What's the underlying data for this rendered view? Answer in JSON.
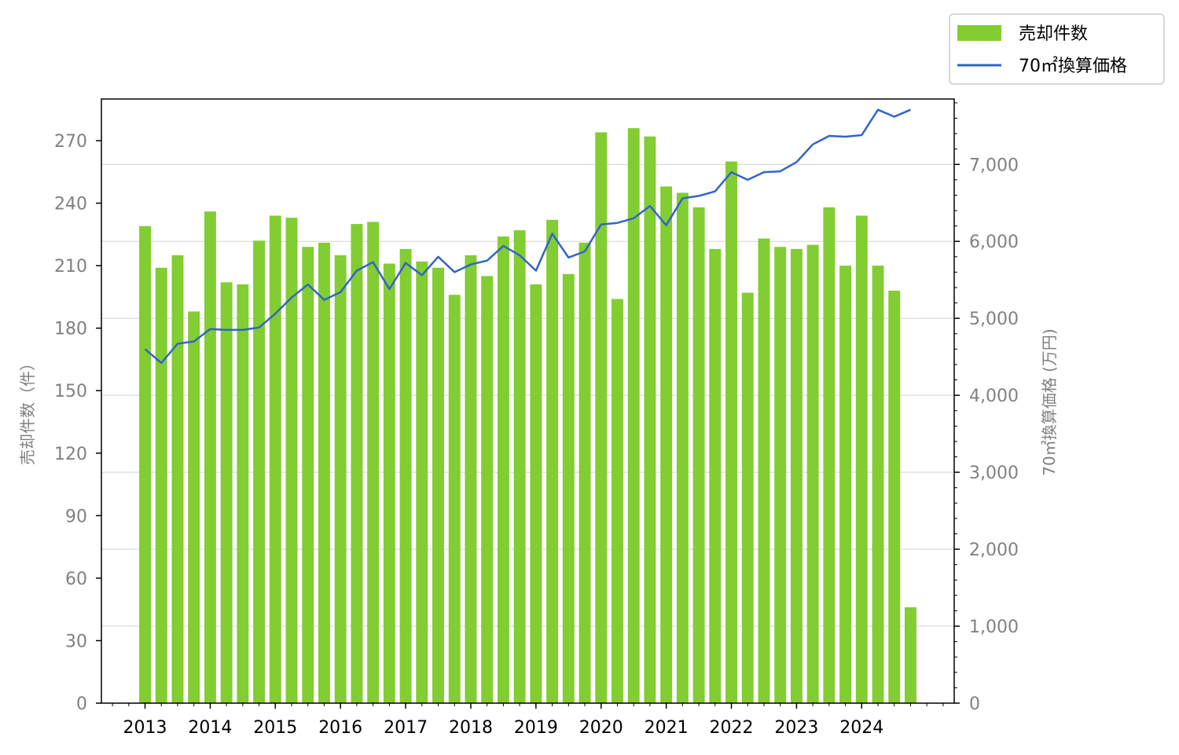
{
  "colors": {
    "bar": "#82cd32",
    "line": "#3264c8",
    "grid": "#d3d3d3",
    "tick_text": "#808080"
  },
  "legend": {
    "placement": "top-right, outside plot",
    "items": [
      {
        "label": "売却件数",
        "type": "bar"
      },
      {
        "label": "70㎡換算価格",
        "type": "line"
      }
    ]
  },
  "chart_data": {
    "type": "bar+line",
    "x": [
      2013.0,
      2013.25,
      2013.5,
      2013.75,
      2014.0,
      2014.25,
      2014.5,
      2014.75,
      2015.0,
      2015.25,
      2015.5,
      2015.75,
      2016.0,
      2016.25,
      2016.5,
      2016.75,
      2017.0,
      2017.25,
      2017.5,
      2017.75,
      2018.0,
      2018.25,
      2018.5,
      2018.75,
      2019.0,
      2019.25,
      2019.5,
      2019.75,
      2020.0,
      2020.25,
      2020.5,
      2020.75,
      2021.0,
      2021.25,
      2021.5,
      2021.75,
      2022.0,
      2022.25,
      2022.5,
      2022.75,
      2023.0,
      2023.25,
      2023.5,
      2023.75,
      2024.0,
      2024.25,
      2024.5,
      2024.75
    ],
    "x_ticks": [
      "2013",
      "2014",
      "2015",
      "2016",
      "2017",
      "2018",
      "2019",
      "2020",
      "2021",
      "2022",
      "2023",
      "2024"
    ],
    "x_tick_values": [
      2013,
      2014,
      2015,
      2016,
      2017,
      2018,
      2019,
      2020,
      2021,
      2022,
      2023,
      2024
    ],
    "xlim": [
      2012.33,
      2025.42
    ],
    "series": [
      {
        "name": "売却件数",
        "axis": "left",
        "type": "bar",
        "values": [
          229,
          209,
          215,
          188,
          236,
          202,
          201,
          222,
          234,
          233,
          219,
          221,
          215,
          230,
          231,
          211,
          218,
          212,
          209,
          196,
          215,
          205,
          224,
          227,
          201,
          232,
          206,
          221,
          274,
          194,
          276,
          272,
          248,
          245,
          238,
          218,
          260,
          197,
          223,
          219,
          218,
          220,
          238,
          210,
          234,
          210,
          198,
          46
        ]
      },
      {
        "name": "70㎡換算価格",
        "axis": "right",
        "type": "line",
        "values": [
          4600,
          4420,
          4670,
          4700,
          4860,
          4850,
          4850,
          4880,
          5060,
          5270,
          5440,
          5240,
          5340,
          5620,
          5730,
          5380,
          5720,
          5560,
          5800,
          5600,
          5700,
          5750,
          5940,
          5820,
          5620,
          6100,
          5790,
          5870,
          6220,
          6240,
          6300,
          6460,
          6210,
          6560,
          6590,
          6650,
          6900,
          6800,
          6900,
          6910,
          7030,
          7260,
          7370,
          7360,
          7380,
          7710,
          7620,
          7710
        ]
      }
    ],
    "y_left": {
      "label": "売却件数（件）",
      "ylim": [
        0,
        290
      ],
      "ticks": [
        0,
        30,
        60,
        90,
        120,
        150,
        180,
        210,
        240,
        270
      ],
      "tick_labels": [
        "0",
        "30",
        "60",
        "90",
        "120",
        "150",
        "180",
        "210",
        "240",
        "270"
      ]
    },
    "y_right": {
      "label": "70㎡換算価格 (万円)",
      "ylim": [
        0,
        7850
      ],
      "ticks": [
        0,
        1000,
        2000,
        3000,
        4000,
        5000,
        6000,
        7000
      ],
      "tick_labels": [
        "0",
        "1,000",
        "2,000",
        "3,000",
        "4,000",
        "5,000",
        "6,000",
        "7,000"
      ]
    },
    "grid": "horizontal, right axis"
  }
}
